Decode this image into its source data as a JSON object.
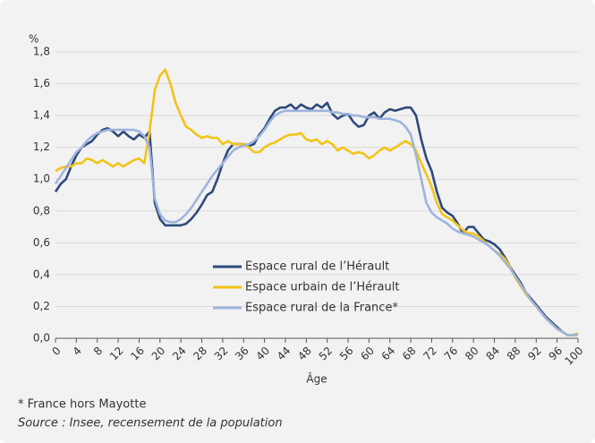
{
  "chart_data": {
    "type": "line",
    "y_unit": "%",
    "x_label": "Âge",
    "footnote": "* France hors Mayotte",
    "source": "Source : Insee, recensement de la population",
    "x": [
      0,
      1,
      2,
      3,
      4,
      5,
      6,
      7,
      8,
      9,
      10,
      11,
      12,
      13,
      14,
      15,
      16,
      17,
      18,
      19,
      20,
      21,
      22,
      23,
      24,
      25,
      26,
      27,
      28,
      29,
      30,
      31,
      32,
      33,
      34,
      35,
      36,
      37,
      38,
      39,
      40,
      41,
      42,
      43,
      44,
      45,
      46,
      47,
      48,
      49,
      50,
      51,
      52,
      53,
      54,
      55,
      56,
      57,
      58,
      59,
      60,
      61,
      62,
      63,
      64,
      65,
      66,
      67,
      68,
      69,
      70,
      71,
      72,
      73,
      74,
      75,
      76,
      77,
      78,
      79,
      80,
      81,
      82,
      83,
      84,
      85,
      86,
      87,
      88,
      89,
      90,
      91,
      92,
      93,
      94,
      95,
      96,
      97,
      98,
      99,
      100
    ],
    "series": [
      {
        "name": "Espace rural de l’Hérault",
        "color": "#2e4a7a",
        "values": [
          0.92,
          0.97,
          1.0,
          1.08,
          1.15,
          1.2,
          1.22,
          1.24,
          1.28,
          1.31,
          1.32,
          1.3,
          1.27,
          1.3,
          1.27,
          1.25,
          1.28,
          1.26,
          1.3,
          0.85,
          0.75,
          0.71,
          0.71,
          0.71,
          0.71,
          0.72,
          0.75,
          0.79,
          0.84,
          0.9,
          0.92,
          1.0,
          1.1,
          1.18,
          1.22,
          1.22,
          1.22,
          1.21,
          1.22,
          1.28,
          1.32,
          1.38,
          1.43,
          1.45,
          1.45,
          1.47,
          1.44,
          1.47,
          1.45,
          1.44,
          1.47,
          1.45,
          1.48,
          1.41,
          1.38,
          1.4,
          1.41,
          1.36,
          1.33,
          1.34,
          1.4,
          1.42,
          1.38,
          1.42,
          1.44,
          1.43,
          1.44,
          1.45,
          1.45,
          1.4,
          1.25,
          1.13,
          1.05,
          0.92,
          0.82,
          0.79,
          0.77,
          0.72,
          0.66,
          0.7,
          0.7,
          0.66,
          0.62,
          0.61,
          0.59,
          0.56,
          0.51,
          0.45,
          0.4,
          0.35,
          0.29,
          0.25,
          0.21,
          0.17,
          0.13,
          0.1,
          0.07,
          0.04,
          0.02,
          0.02,
          0.03
        ]
      },
      {
        "name": "Espace urbain de l’Hérault",
        "color": "#f2c418",
        "values": [
          1.05,
          1.07,
          1.08,
          1.08,
          1.1,
          1.1,
          1.13,
          1.12,
          1.1,
          1.12,
          1.1,
          1.08,
          1.1,
          1.08,
          1.1,
          1.12,
          1.13,
          1.1,
          1.3,
          1.56,
          1.65,
          1.69,
          1.6,
          1.48,
          1.4,
          1.33,
          1.31,
          1.28,
          1.26,
          1.27,
          1.26,
          1.26,
          1.22,
          1.24,
          1.22,
          1.22,
          1.22,
          1.2,
          1.17,
          1.17,
          1.2,
          1.22,
          1.23,
          1.25,
          1.27,
          1.28,
          1.28,
          1.29,
          1.25,
          1.24,
          1.25,
          1.22,
          1.24,
          1.22,
          1.18,
          1.2,
          1.18,
          1.16,
          1.17,
          1.16,
          1.13,
          1.15,
          1.18,
          1.2,
          1.18,
          1.2,
          1.22,
          1.24,
          1.22,
          1.18,
          1.1,
          1.03,
          0.95,
          0.85,
          0.78,
          0.76,
          0.74,
          0.71,
          0.68,
          0.66,
          0.66,
          0.64,
          0.61,
          0.58,
          0.55,
          0.53,
          0.5,
          0.45,
          0.38,
          0.33,
          0.28,
          0.24,
          0.2,
          0.16,
          0.12,
          0.09,
          0.06,
          0.04,
          0.02,
          0.02,
          0.03
        ]
      },
      {
        "name": "Espace rural de la France*",
        "color": "#9fb4dc",
        "values": [
          0.97,
          1.02,
          1.07,
          1.12,
          1.17,
          1.2,
          1.24,
          1.27,
          1.29,
          1.3,
          1.31,
          1.31,
          1.31,
          1.31,
          1.31,
          1.31,
          1.3,
          1.27,
          1.2,
          0.88,
          0.78,
          0.74,
          0.73,
          0.73,
          0.75,
          0.78,
          0.82,
          0.87,
          0.92,
          0.97,
          1.02,
          1.06,
          1.1,
          1.14,
          1.18,
          1.2,
          1.21,
          1.22,
          1.24,
          1.27,
          1.31,
          1.36,
          1.4,
          1.42,
          1.43,
          1.43,
          1.43,
          1.43,
          1.43,
          1.43,
          1.43,
          1.43,
          1.43,
          1.42,
          1.42,
          1.41,
          1.41,
          1.4,
          1.4,
          1.39,
          1.39,
          1.39,
          1.38,
          1.38,
          1.38,
          1.37,
          1.36,
          1.33,
          1.28,
          1.15,
          1.0,
          0.85,
          0.79,
          0.76,
          0.74,
          0.72,
          0.69,
          0.67,
          0.66,
          0.65,
          0.64,
          0.62,
          0.6,
          0.58,
          0.55,
          0.52,
          0.48,
          0.44,
          0.39,
          0.34,
          0.29,
          0.24,
          0.2,
          0.16,
          0.12,
          0.09,
          0.06,
          0.04,
          0.02,
          0.02,
          0.02
        ]
      }
    ],
    "xlim": [
      0,
      100
    ],
    "xticks": [
      0,
      4,
      8,
      12,
      16,
      20,
      24,
      28,
      32,
      36,
      40,
      44,
      48,
      52,
      56,
      60,
      64,
      68,
      72,
      76,
      80,
      84,
      88,
      92,
      96,
      100
    ],
    "ylim": [
      0,
      1.8
    ],
    "yticks": [
      {
        "value": 0,
        "label": "0,0"
      },
      {
        "value": 0.2,
        "label": "0,2"
      },
      {
        "value": 0.4,
        "label": "0,4"
      },
      {
        "value": 0.6,
        "label": "0,6"
      },
      {
        "value": 0.8,
        "label": "0,8"
      },
      {
        "value": 1,
        "label": "1,0"
      },
      {
        "value": 1.2,
        "label": "1,2"
      },
      {
        "value": 1.4,
        "label": "1,4"
      },
      {
        "value": 1.6,
        "label": "1,6"
      },
      {
        "value": 1.8,
        "label": "1,8"
      }
    ],
    "grid": true,
    "legend": "lower-center"
  }
}
